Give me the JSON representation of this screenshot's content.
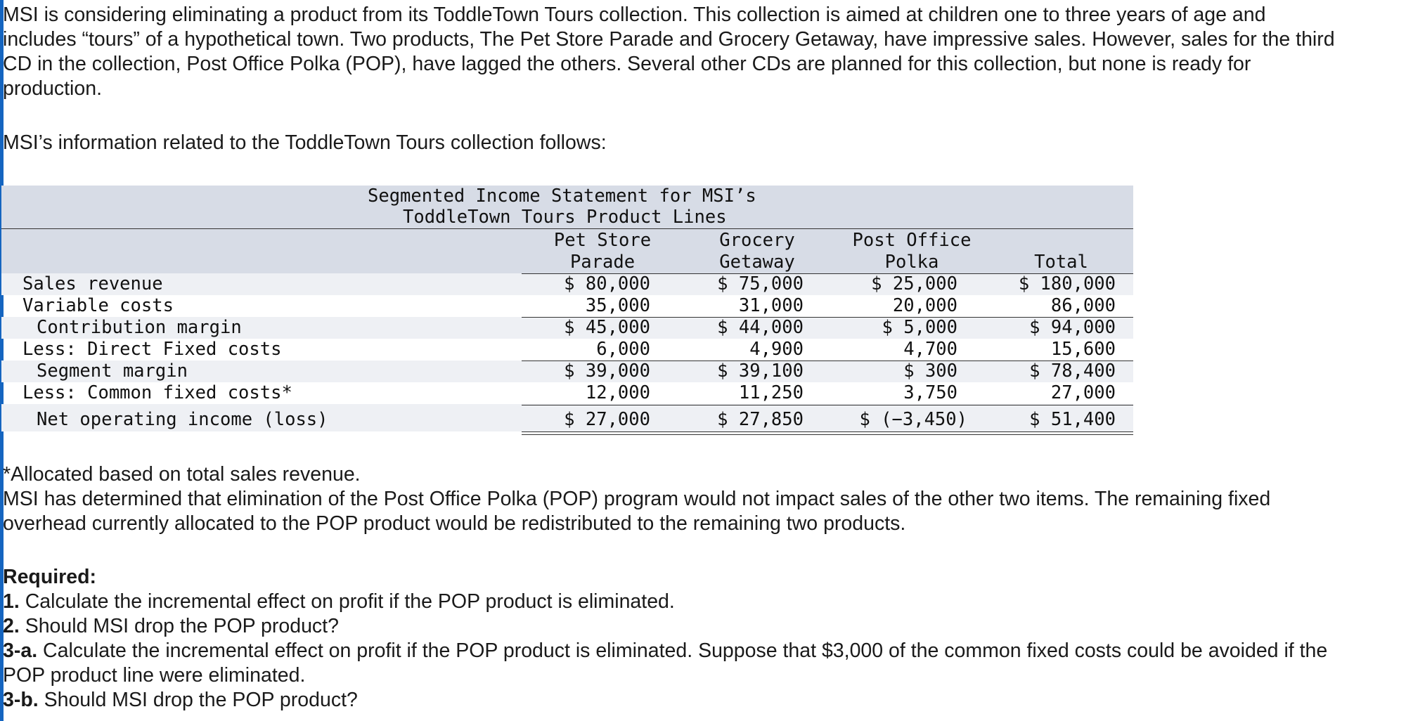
{
  "intro": "MSI is considering eliminating a product from its ToddleTown Tours collection. This collection is aimed at children one to three years of age and includes “tours” of a hypothetical town. Two products, The Pet Store Parade and Grocery Getaway, have impressive sales. However, sales for the third CD in the collection, Post Office Polka (POP), have lagged the others. Several other CDs are planned for this collection, but none is ready for production.",
  "lead": "MSI’s information related to the ToddleTown Tours collection follows:",
  "table": {
    "title_line1": "Segmented Income Statement for MSI’s",
    "title_line2": "ToddleTown Tours Product Lines",
    "columns": [
      {
        "line1": "Pet Store",
        "line2": "Parade"
      },
      {
        "line1": "Grocery",
        "line2": "Getaway"
      },
      {
        "line1": "Post Office",
        "line2": "Polka"
      },
      {
        "line1": "",
        "line2": "Total"
      }
    ],
    "rows": [
      {
        "label": "Sales revenue",
        "values": [
          "$ 80,000",
          "$ 75,000",
          "$ 25,000",
          "$ 180,000"
        ]
      },
      {
        "label": "Variable costs",
        "values": [
          "35,000",
          "31,000",
          "20,000",
          "86,000"
        ]
      },
      {
        "label": "Contribution margin",
        "values": [
          "$ 45,000",
          "$ 44,000",
          "$ 5,000",
          "$ 94,000"
        ]
      },
      {
        "label": "Less: Direct Fixed costs",
        "values": [
          "6,000",
          "4,900",
          "4,700",
          "15,600"
        ]
      },
      {
        "label": "Segment margin",
        "values": [
          "$ 39,000",
          "$ 39,100",
          "$ 300",
          "$ 78,400"
        ]
      },
      {
        "label": "Less: Common fixed costs*",
        "values": [
          "12,000",
          "11,250",
          "3,750",
          "27,000"
        ]
      },
      {
        "label": "Net operating income (loss)",
        "values": [
          "$ 27,000",
          "$ 27,850",
          "$ (−3,450)",
          "$ 51,400"
        ]
      }
    ]
  },
  "footnote": "*Allocated based on total sales revenue.",
  "after_note": "MSI has determined that elimination of the Post Office Polka (POP) program would not impact sales of the other two items. The remaining fixed overhead currently allocated to the POP product would be redistributed to the remaining two products.",
  "required": {
    "heading": "Required:",
    "items": [
      {
        "num": "1.",
        "text": " Calculate the incremental effect on profit if the POP product is eliminated."
      },
      {
        "num": "2.",
        "text": " Should MSI drop the POP product?"
      },
      {
        "num": "3-a.",
        "text": " Calculate the incremental effect on profit if the POP product is eliminated. Suppose that $3,000 of the common fixed costs could be avoided if the POP product line were eliminated."
      },
      {
        "num": "3-b.",
        "text": " Should MSI drop the POP product?"
      }
    ]
  }
}
